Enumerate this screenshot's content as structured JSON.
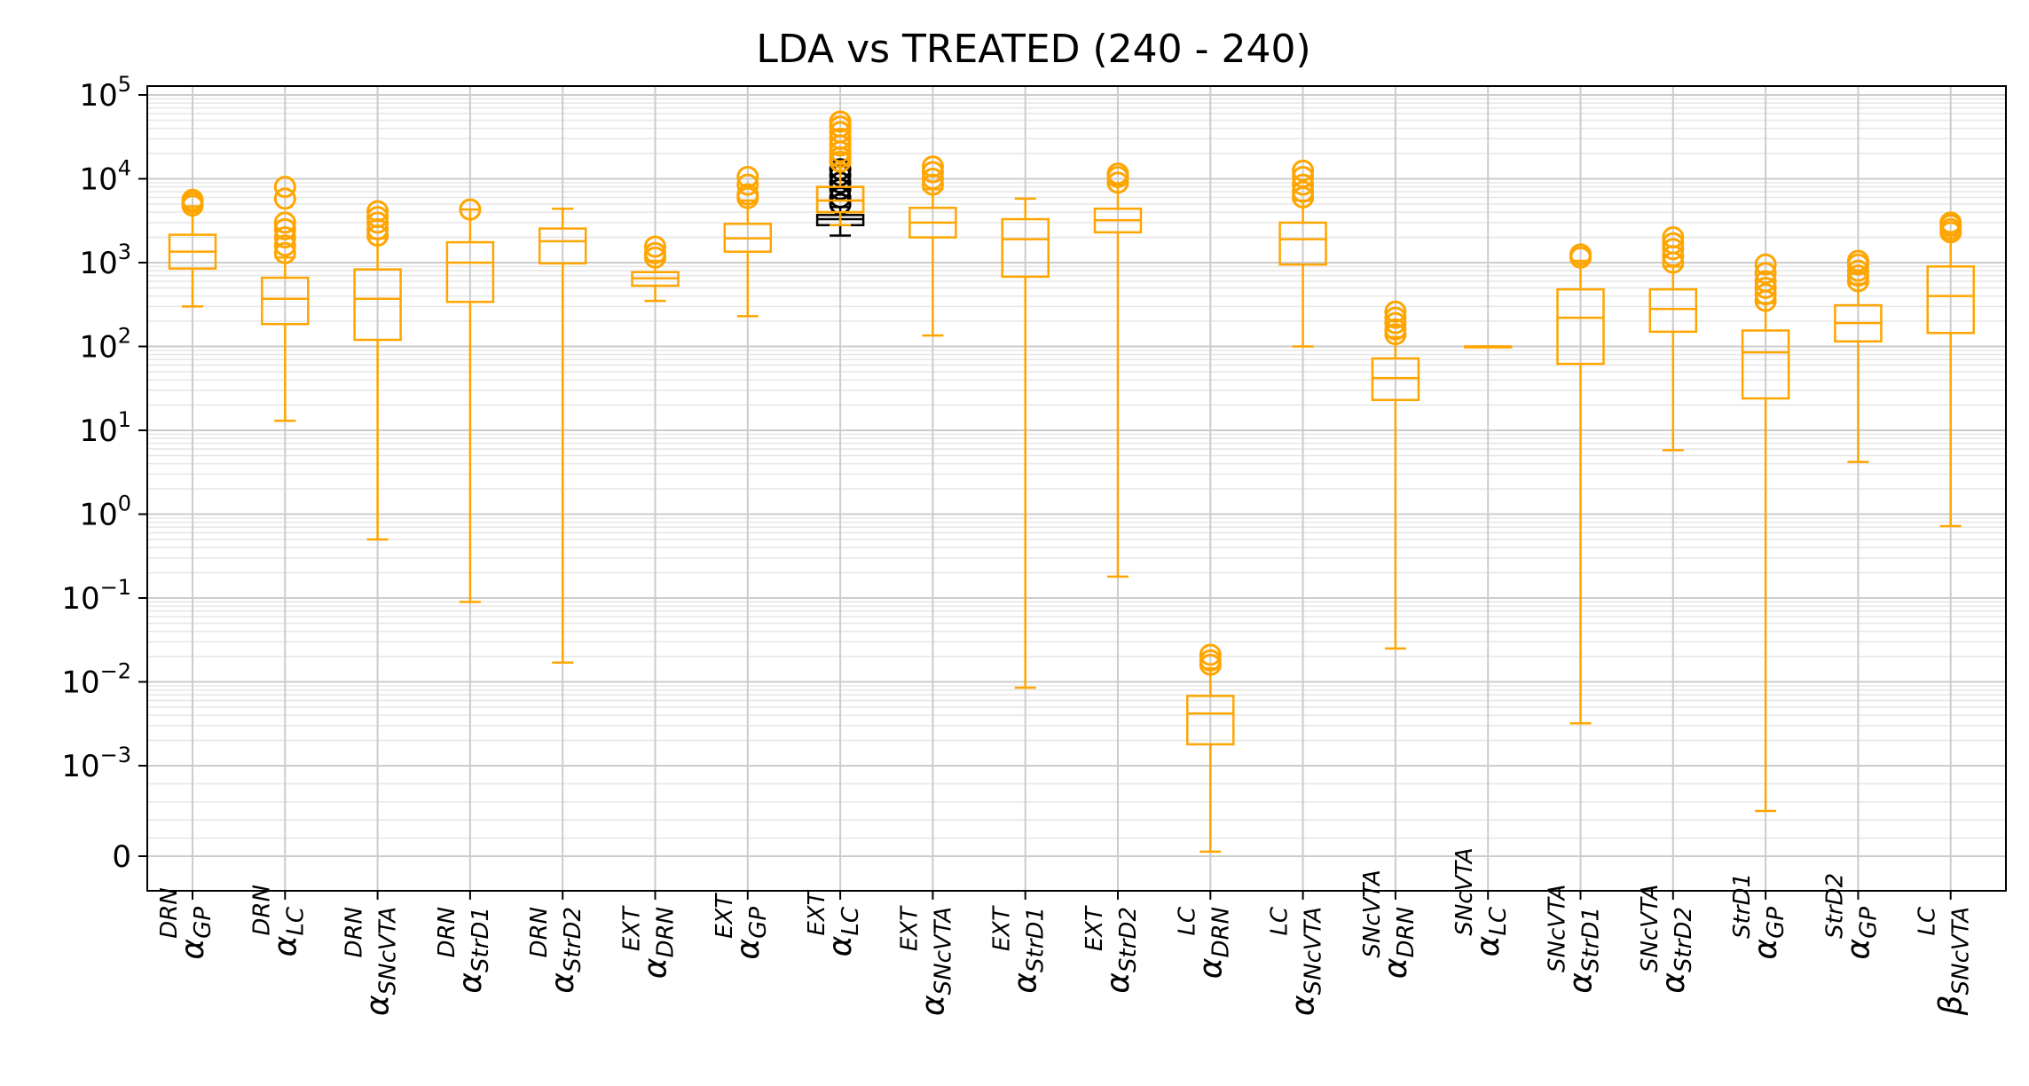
{
  "chart_data": {
    "type": "box",
    "title": "LDA vs TREATED (240 - 240)",
    "xlabel": "",
    "ylabel": "",
    "yscale": "symlog",
    "ylim": [
      -0.0003,
      100000
    ],
    "grid": true,
    "colors": {
      "box": "#ffa500",
      "highlight": "#000000",
      "grid": "#cccccc",
      "minor_grid": "#e6e6e6"
    },
    "ytick_labels": [
      {
        "base": "10",
        "exp": "5",
        "value": 100000
      },
      {
        "base": "10",
        "exp": "4",
        "value": 10000
      },
      {
        "base": "10",
        "exp": "3",
        "value": 1000
      },
      {
        "base": "10",
        "exp": "2",
        "value": 100
      },
      {
        "base": "10",
        "exp": "1",
        "value": 10
      },
      {
        "base": "10",
        "exp": "0",
        "value": 1
      },
      {
        "base": "10",
        "exp": "−1",
        "value": 0.1
      },
      {
        "base": "10",
        "exp": "−2",
        "value": 0.01
      },
      {
        "base": "10",
        "exp": "−3",
        "value": 0.001
      },
      {
        "base": "0",
        "exp": "",
        "value": 0
      }
    ],
    "categories": [
      {
        "sym": "α",
        "sup": "DRN",
        "sub": "GP"
      },
      {
        "sym": "α",
        "sup": "DRN",
        "sub": "LC"
      },
      {
        "sym": "α",
        "sup": "DRN",
        "sub": "SNcVTA"
      },
      {
        "sym": "α",
        "sup": "DRN",
        "sub": "StrD1"
      },
      {
        "sym": "α",
        "sup": "DRN",
        "sub": "StrD2"
      },
      {
        "sym": "α",
        "sup": "EXT",
        "sub": "DRN"
      },
      {
        "sym": "α",
        "sup": "EXT",
        "sub": "GP"
      },
      {
        "sym": "α",
        "sup": "EXT",
        "sub": "LC"
      },
      {
        "sym": "α",
        "sup": "EXT",
        "sub": "SNcVTA"
      },
      {
        "sym": "α",
        "sup": "EXT",
        "sub": "StrD1"
      },
      {
        "sym": "α",
        "sup": "EXT",
        "sub": "StrD2"
      },
      {
        "sym": "α",
        "sup": "LC",
        "sub": "DRN"
      },
      {
        "sym": "α",
        "sup": "LC",
        "sub": "SNcVTA"
      },
      {
        "sym": "α",
        "sup": "SNcVTA",
        "sub": "DRN"
      },
      {
        "sym": "α",
        "sup": "SNcVTA",
        "sub": "LC"
      },
      {
        "sym": "α",
        "sup": "SNcVTA",
        "sub": "StrD1"
      },
      {
        "sym": "α",
        "sup": "SNcVTA",
        "sub": "StrD2"
      },
      {
        "sym": "α",
        "sup": "StrD1",
        "sub": "GP"
      },
      {
        "sym": "α",
        "sup": "StrD2",
        "sub": "GP"
      },
      {
        "sym": "β",
        "sup": "LC",
        "sub": "SNcVTA"
      }
    ],
    "series": [
      {
        "boxes": [
          {
            "whislo": 300,
            "q1": 850,
            "med": 1350,
            "q3": 2150,
            "whishi": 4700,
            "fliers": [
              4800,
              5200,
              5600
            ]
          },
          {
            "whislo": 13,
            "q1": 185,
            "med": 370,
            "q3": 660,
            "whishi": 1150,
            "fliers": [
              1300,
              1600,
              2000,
              2500,
              3000,
              5800,
              8000
            ]
          },
          {
            "whislo": 0.5,
            "q1": 120,
            "med": 370,
            "q3": 830,
            "whishi": 1950,
            "fliers": [
              2100,
              2500,
              3000,
              3500,
              4100
            ]
          },
          {
            "whislo": 0.09,
            "q1": 340,
            "med": 1000,
            "q3": 1750,
            "whishi": 4300,
            "fliers": [
              4300
            ]
          },
          {
            "whislo": 0.017,
            "q1": 980,
            "med": 1800,
            "q3": 2550,
            "whishi": 4400,
            "fliers": []
          },
          {
            "whislo": 350,
            "q1": 530,
            "med": 650,
            "q3": 770,
            "whishi": 1050,
            "fliers": [
              1150,
              1300,
              1550
            ]
          },
          {
            "whislo": 230,
            "q1": 1350,
            "med": 1950,
            "q3": 2900,
            "whishi": 5500,
            "fliers": [
              5900,
              6500,
              8500,
              10500
            ]
          },
          {
            "whislo": 2800,
            "q1": 4000,
            "med": 5500,
            "q3": 8000,
            "whishi": 15000,
            "fliers": [
              16000,
              18000,
              21000,
              25000,
              30000,
              36000,
              42000,
              48000
            ]
          },
          {
            "whislo": 135,
            "q1": 2000,
            "med": 3000,
            "q3": 4500,
            "whishi": 7500,
            "fliers": [
              8500,
              10000,
              12000,
              14000
            ]
          },
          {
            "whislo": 0.0085,
            "q1": 680,
            "med": 1900,
            "q3": 3300,
            "whishi": 5800,
            "fliers": []
          },
          {
            "whislo": 0.18,
            "q1": 2300,
            "med": 3200,
            "q3": 4400,
            "whishi": 8500,
            "fliers": [
              9000,
              10500,
              11500
            ]
          },
          {
            "whislo": 5e-05,
            "q1": 0.0018,
            "med": 0.0042,
            "q3": 0.0068,
            "whishi": 0.0145,
            "fliers": [
              0.016,
              0.018,
              0.021
            ]
          },
          {
            "whislo": 100,
            "q1": 950,
            "med": 1900,
            "q3": 3000,
            "whishi": 5500,
            "fliers": [
              6000,
              7000,
              8500,
              10500,
              12500
            ]
          },
          {
            "whislo": 0.025,
            "q1": 23,
            "med": 42,
            "q3": 72,
            "whishi": 130,
            "fliers": [
              140,
              160,
              190,
              220,
              260
            ]
          },
          {
            "whislo": 100,
            "q1": 100,
            "med": 100,
            "q3": 100,
            "whishi": 100,
            "fliers": []
          },
          {
            "whislo": 0.0032,
            "q1": 62,
            "med": 220,
            "q3": 480,
            "whishi": 1050,
            "fliers": [
              1150,
              1250
            ]
          },
          {
            "whislo": 5.8,
            "q1": 150,
            "med": 280,
            "q3": 480,
            "whishi": 900,
            "fliers": [
              1000,
              1200,
              1450,
              1700,
              2000
            ]
          },
          {
            "whislo": 0.0005,
            "q1": 24,
            "med": 85,
            "q3": 155,
            "whishi": 330,
            "fliers": [
              350,
              420,
              500,
              600,
              750,
              950
            ]
          },
          {
            "whislo": 4.2,
            "q1": 115,
            "med": 190,
            "q3": 310,
            "whishi": 560,
            "fliers": [
              600,
              700,
              800,
              950,
              1050
            ]
          },
          {
            "whislo": 0.72,
            "q1": 145,
            "med": 400,
            "q3": 900,
            "whishi": 2100,
            "fliers": [
              2300,
              2500,
              2800,
              3000
            ]
          }
        ]
      },
      {
        "index": 7,
        "box": {
          "whislo": 2100,
          "q1": 2800,
          "med": 3300,
          "q3": 3700,
          "whishi": 4600,
          "fliers": [
            5000,
            6000,
            7500,
            9000,
            11000,
            13000
          ]
        }
      }
    ]
  }
}
